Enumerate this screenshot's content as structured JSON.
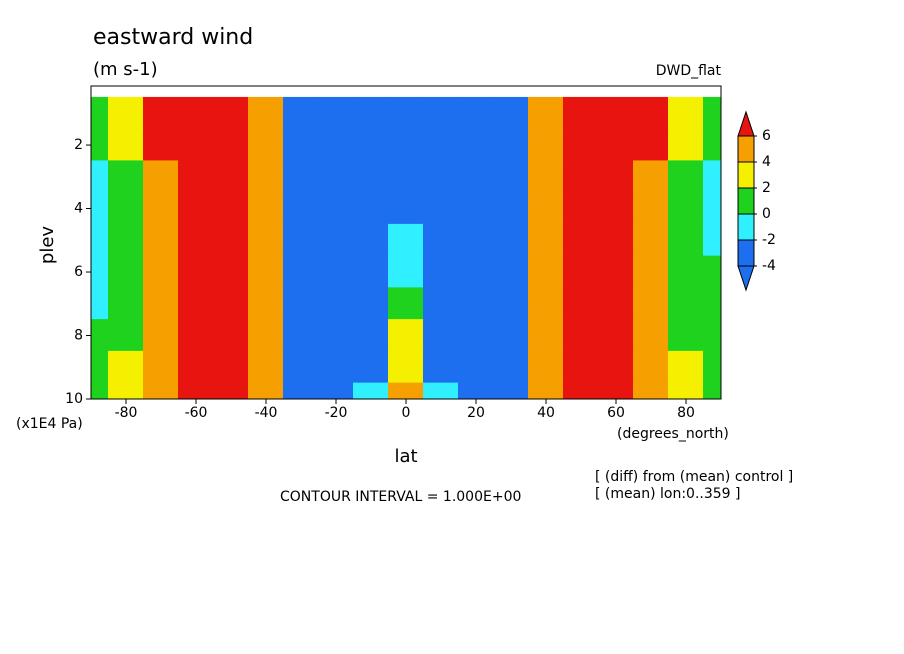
{
  "chart_data": {
    "type": "contour",
    "title": "eastward wind",
    "units": "(m s-1)",
    "experiment": "DWD_flat",
    "x_label": "lat",
    "y_label": "plev",
    "x_units": "(degrees_north)",
    "y_units": "(x1E4 Pa)",
    "contour_note": "CONTOUR INTERVAL = 1.000E+00",
    "notes": [
      "[ (diff) from (mean) control ]",
      "[ (mean) lon:0..359 ]"
    ],
    "x": [
      -90,
      -80,
      -70,
      -60,
      -50,
      -40,
      -30,
      -20,
      -10,
      0,
      10,
      20,
      30,
      40,
      50,
      60,
      70,
      80,
      90
    ],
    "y": [
      1,
      2,
      3,
      4,
      5,
      6,
      7,
      8,
      9,
      10
    ],
    "z": [
      [
        1,
        3,
        8,
        15,
        20,
        5,
        -15,
        -20,
        -20,
        -10,
        -20,
        -20,
        -15,
        5,
        20,
        15,
        8,
        3,
        1
      ],
      [
        0,
        2,
        6,
        15,
        25,
        5,
        -20,
        -25,
        -15,
        -3,
        -15,
        -25,
        -20,
        5,
        25,
        15,
        6,
        2,
        1
      ],
      [
        -1,
        1,
        5,
        15,
        25,
        5,
        -20,
        -25,
        -12,
        -3,
        -12,
        -25,
        -20,
        5,
        25,
        15,
        5,
        1,
        -1
      ],
      [
        -1,
        1,
        4,
        15,
        25,
        5,
        -20,
        -25,
        -10,
        -3,
        -10,
        -25,
        -20,
        5,
        25,
        15,
        4,
        1,
        -1
      ],
      [
        -1,
        1,
        4,
        14,
        22,
        5,
        -18,
        -22,
        -8,
        -2,
        -8,
        -22,
        -18,
        5,
        22,
        14,
        4,
        1,
        -0.5
      ],
      [
        -1,
        1,
        4,
        13,
        20,
        5,
        -16,
        -18,
        -6,
        -1,
        -6,
        -18,
        -16,
        5,
        20,
        13,
        4,
        1,
        0.5
      ],
      [
        -1,
        1,
        4,
        12,
        18,
        5,
        -15,
        -15,
        -5,
        1,
        -5,
        -15,
        -15,
        5,
        18,
        12,
        4,
        1,
        1
      ],
      [
        0,
        1,
        4,
        11,
        16,
        5,
        -13,
        -12,
        -4,
        2,
        -4,
        -12,
        -13,
        5,
        16,
        11,
        4,
        1,
        1
      ],
      [
        1,
        2,
        4,
        10,
        14,
        5,
        -11,
        -10,
        -3,
        3,
        -3,
        -10,
        -11,
        5,
        14,
        10,
        4,
        2,
        1
      ],
      [
        1,
        2,
        4,
        9,
        12,
        5,
        -9,
        -8,
        -2,
        5,
        -2,
        -8,
        -9,
        5,
        12,
        9,
        4,
        2,
        1
      ]
    ],
    "levels": [
      -4,
      -2,
      0,
      2,
      4,
      6
    ],
    "colors": [
      "#1e6ef0",
      "#1e6ef0",
      "#30f0ff",
      "#1ed21e",
      "#f5f000",
      "#f5a000",
      "#e8140f"
    ],
    "xlim": [
      -90,
      90
    ],
    "ylim": [
      10,
      0.14
    ],
    "xticks": [
      -80,
      -60,
      -40,
      -20,
      0,
      20,
      40,
      60,
      80
    ],
    "yticks": [
      2,
      4,
      6,
      8,
      10
    ]
  }
}
